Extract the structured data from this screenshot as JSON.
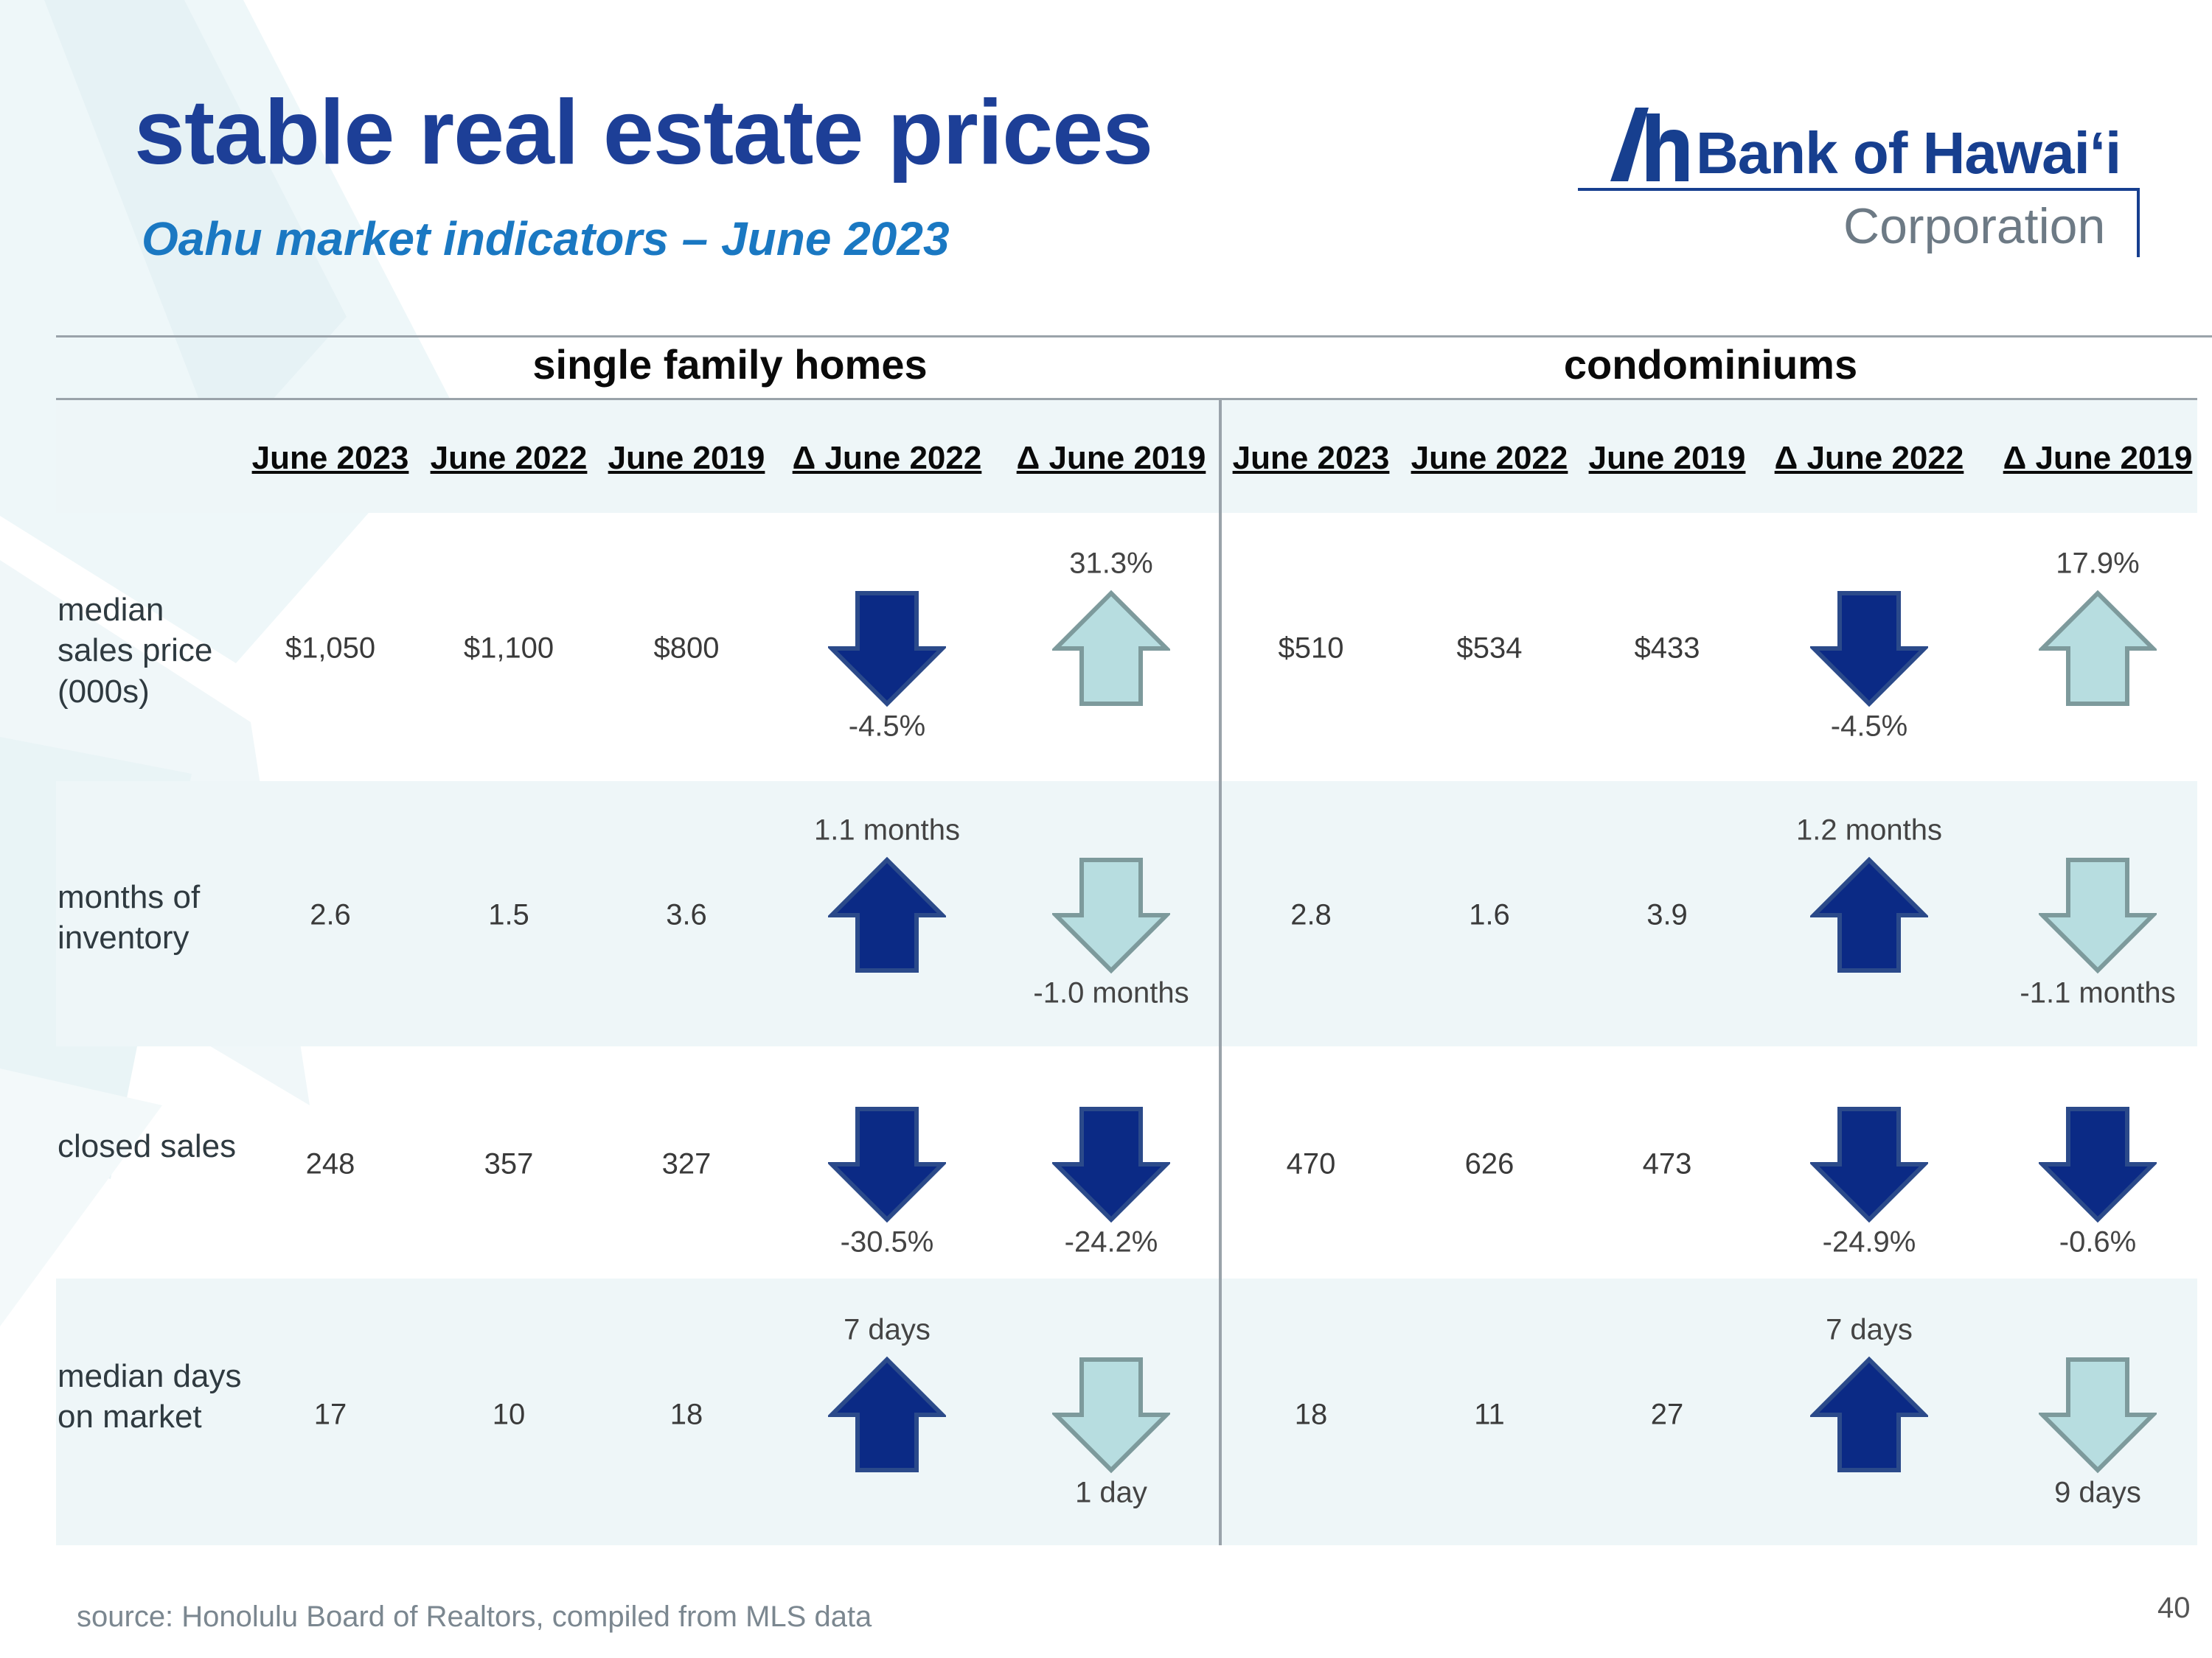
{
  "title": "stable real estate prices",
  "subtitle": "Oahu market indicators – June 2023",
  "logo": {
    "name": "Bank of Hawai‘i",
    "sub": "Corporation",
    "brand_color": "#173f8f"
  },
  "groups": [
    "single family homes",
    "condominiums"
  ],
  "columns": [
    "June 2023",
    "June 2022",
    "June 2019",
    "Δ June 2022",
    "Δ June 2019"
  ],
  "rows": [
    {
      "label": "median sales price (000s)",
      "sfh": {
        "values": [
          "$1,050",
          "$1,100",
          "$800"
        ],
        "d2022": {
          "dir": "down",
          "style": "dark",
          "text": "-4.5%"
        },
        "d2019": {
          "dir": "up",
          "style": "light",
          "text": "31.3%"
        }
      },
      "condo": {
        "values": [
          "$510",
          "$534",
          "$433"
        ],
        "d2022": {
          "dir": "down",
          "style": "dark",
          "text": "-4.5%"
        },
        "d2019": {
          "dir": "up",
          "style": "light",
          "text": "17.9%"
        }
      }
    },
    {
      "label": "months of inventory",
      "sfh": {
        "values": [
          "2.6",
          "1.5",
          "3.6"
        ],
        "d2022": {
          "dir": "up",
          "style": "dark",
          "text": "1.1 months"
        },
        "d2019": {
          "dir": "down",
          "style": "light",
          "text": "-1.0 months"
        }
      },
      "condo": {
        "values": [
          "2.8",
          "1.6",
          "3.9"
        ],
        "d2022": {
          "dir": "up",
          "style": "dark",
          "text": "1.2 months"
        },
        "d2019": {
          "dir": "down",
          "style": "light",
          "text": "-1.1 months"
        }
      }
    },
    {
      "label": "closed sales",
      "sfh": {
        "values": [
          "248",
          "357",
          "327"
        ],
        "d2022": {
          "dir": "down",
          "style": "dark",
          "text": "-30.5%"
        },
        "d2019": {
          "dir": "down",
          "style": "dark",
          "text": "-24.2%"
        }
      },
      "condo": {
        "values": [
          "470",
          "626",
          "473"
        ],
        "d2022": {
          "dir": "down",
          "style": "dark",
          "text": "-24.9%"
        },
        "d2019": {
          "dir": "down",
          "style": "dark",
          "text": "-0.6%"
        }
      }
    },
    {
      "label": "median days on market",
      "sfh": {
        "values": [
          "17",
          "10",
          "18"
        ],
        "d2022": {
          "dir": "up",
          "style": "dark",
          "text": "7 days"
        },
        "d2019": {
          "dir": "down",
          "style": "light",
          "text": "1 day"
        }
      },
      "condo": {
        "values": [
          "18",
          "11",
          "27"
        ],
        "d2022": {
          "dir": "up",
          "style": "dark",
          "text": "7 days"
        },
        "d2019": {
          "dir": "down",
          "style": "light",
          "text": "9 days"
        }
      }
    }
  ],
  "colors": {
    "arrow_dark": "#0b2a85",
    "arrow_dark_stroke": "#2b4a8a",
    "arrow_light": "#b7dde0",
    "arrow_light_stroke": "#7d9a9c"
  },
  "source": "source: Honolulu Board of Realtors, compiled from MLS data",
  "page_number": "40"
}
